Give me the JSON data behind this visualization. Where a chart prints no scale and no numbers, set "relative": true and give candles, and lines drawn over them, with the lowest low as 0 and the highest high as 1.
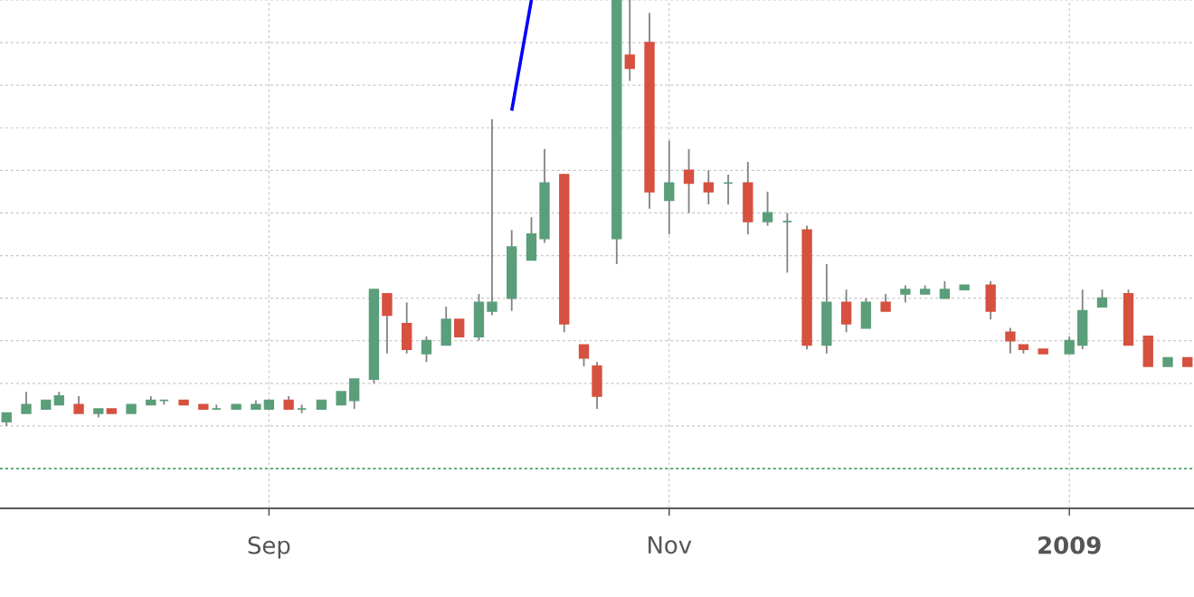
{
  "chart_data": {
    "type": "candlestick",
    "relative": true,
    "grid": true,
    "x": [
      "2008-07-23",
      "2008-07-26",
      "2008-07-29",
      "2008-07-31",
      "2008-08-03",
      "2008-08-06",
      "2008-08-08",
      "2008-08-11",
      "2008-08-14",
      "2008-08-16",
      "2008-08-19",
      "2008-08-22",
      "2008-08-24",
      "2008-08-27",
      "2008-08-30",
      "2008-09-01",
      "2008-09-04",
      "2008-09-06",
      "2008-09-09",
      "2008-09-12",
      "2008-09-14",
      "2008-09-17",
      "2008-09-19",
      "2008-09-22",
      "2008-09-25",
      "2008-09-28",
      "2008-09-30",
      "2008-10-03",
      "2008-10-05",
      "2008-10-08",
      "2008-10-11",
      "2008-10-13",
      "2008-10-16",
      "2008-10-19",
      "2008-10-21",
      "2008-10-24",
      "2008-10-26",
      "2008-10-29",
      "2008-11-01",
      "2008-11-04",
      "2008-11-07",
      "2008-11-10",
      "2008-11-13",
      "2008-11-16",
      "2008-11-19",
      "2008-11-22",
      "2008-11-25",
      "2008-11-28",
      "2008-12-01",
      "2008-12-04",
      "2008-12-07",
      "2008-12-10",
      "2008-12-13",
      "2008-12-16",
      "2008-12-20",
      "2008-12-23",
      "2008-12-25",
      "2008-12-28",
      "2009-01-01",
      "2009-01-03",
      "2009-01-06",
      "2009-01-10",
      "2009-01-13",
      "2009-01-16",
      "2009-01-19"
    ],
    "ohlc": [
      [
        0.01,
        0.03,
        0,
        0.03
      ],
      [
        0.03,
        0.08,
        0.03,
        0.05
      ],
      [
        0.04,
        0.06,
        0.04,
        0.06
      ],
      [
        0.05,
        0.08,
        0.05,
        0.07
      ],
      [
        0.05,
        0.07,
        0.03,
        0.03
      ],
      [
        0.03,
        0.04,
        0.02,
        0.04
      ],
      [
        0.04,
        0.04,
        0.03,
        0.03
      ],
      [
        0.03,
        0.05,
        0.03,
        0.05
      ],
      [
        0.05,
        0.07,
        0.05,
        0.06
      ],
      [
        0.06,
        0.06,
        0.05,
        0.06
      ],
      [
        0.06,
        0.06,
        0.05,
        0.05
      ],
      [
        0.05,
        0.05,
        0.04,
        0.04
      ],
      [
        0.04,
        0.05,
        0.04,
        0.04
      ],
      [
        0.04,
        0.05,
        0.04,
        0.05
      ],
      [
        0.04,
        0.06,
        0.04,
        0.05
      ],
      [
        0.04,
        0.06,
        0.04,
        0.06
      ],
      [
        0.06,
        0.07,
        0.04,
        0.04
      ],
      [
        0.04,
        0.05,
        0.03,
        0.04
      ],
      [
        0.04,
        0.06,
        0.04,
        0.06
      ],
      [
        0.05,
        0.08,
        0.05,
        0.08
      ],
      [
        0.06,
        0.11,
        0.04,
        0.11
      ],
      [
        0.11,
        0.32,
        0.1,
        0.32
      ],
      [
        0.31,
        0.31,
        0.17,
        0.26
      ],
      [
        0.24,
        0.29,
        0.17,
        0.18
      ],
      [
        0.17,
        0.21,
        0.15,
        0.2
      ],
      [
        0.19,
        0.28,
        0.19,
        0.25
      ],
      [
        0.25,
        0.25,
        0.21,
        0.21
      ],
      [
        0.21,
        0.31,
        0.2,
        0.29
      ],
      [
        0.27,
        0.72,
        0.26,
        0.29
      ],
      [
        0.3,
        0.46,
        0.27,
        0.42
      ],
      [
        0.39,
        0.49,
        0.39,
        0.45
      ],
      [
        0.44,
        0.65,
        0.43,
        0.57
      ],
      [
        0.59,
        0.59,
        0.22,
        0.24
      ],
      [
        0.19,
        0.19,
        0.14,
        0.16
      ],
      [
        0.14,
        0.15,
        0.04,
        0.07
      ],
      [
        0.44,
        1,
        0.38,
        1
      ],
      [
        0.87,
        1,
        0.81,
        0.84
      ],
      [
        0.9,
        0.97,
        0.51,
        0.55
      ],
      [
        0.53,
        0.67,
        0.45,
        0.57
      ],
      [
        0.6,
        0.65,
        0.5,
        0.57
      ],
      [
        0.57,
        0.6,
        0.52,
        0.55
      ],
      [
        0.57,
        0.59,
        0.52,
        0.57
      ],
      [
        0.57,
        0.62,
        0.45,
        0.48
      ],
      [
        0.48,
        0.55,
        0.47,
        0.5
      ],
      [
        0.48,
        0.5,
        0.36,
        0.48
      ],
      [
        0.46,
        0.47,
        0.18,
        0.19
      ],
      [
        0.19,
        0.38,
        0.17,
        0.29
      ],
      [
        0.29,
        0.32,
        0.22,
        0.24
      ],
      [
        0.23,
        0.3,
        0.23,
        0.29
      ],
      [
        0.29,
        0.31,
        0.27,
        0.27
      ],
      [
        0.31,
        0.33,
        0.29,
        0.32
      ],
      [
        0.31,
        0.33,
        0.31,
        0.32
      ],
      [
        0.3,
        0.34,
        0.3,
        0.32
      ],
      [
        0.32,
        0.33,
        0.32,
        0.33
      ],
      [
        0.33,
        0.34,
        0.25,
        0.27
      ],
      [
        0.22,
        0.23,
        0.17,
        0.2
      ],
      [
        0.19,
        0.19,
        0.17,
        0.18
      ],
      [
        0.18,
        0.18,
        0.17,
        0.17
      ],
      [
        0.17,
        0.21,
        0.17,
        0.2
      ],
      [
        0.19,
        0.32,
        0.18,
        0.27
      ],
      [
        0.28,
        0.32,
        0.28,
        0.3
      ],
      [
        0.31,
        0.32,
        0.19,
        0.19
      ],
      [
        0.21,
        0.21,
        0.14,
        0.14
      ],
      [
        0.14,
        0.16,
        0.14,
        0.16
      ],
      [
        0.16,
        0.16,
        0.14,
        0.14
      ]
    ],
    "colors": [
      "#5b9e7a",
      "#5b9e7a",
      "#5b9e7a",
      "#5b9e7a",
      "#d65140",
      "#5b9e7a",
      "#d65140",
      "#5b9e7a",
      "#5b9e7a",
      "#5b9e7a",
      "#d65140",
      "#d65140",
      "#5b9e7a",
      "#5b9e7a",
      "#5b9e7a",
      "#5b9e7a",
      "#d65140",
      "#5b9e7a",
      "#5b9e7a",
      "#5b9e7a",
      "#5b9e7a",
      "#5b9e7a",
      "#d65140",
      "#d65140",
      "#5b9e7a",
      "#5b9e7a",
      "#d65140",
      "#5b9e7a",
      "#5b9e7a",
      "#5b9e7a",
      "#5b9e7a",
      "#5b9e7a",
      "#d65140",
      "#d65140",
      "#d65140",
      "#5b9e7a",
      "#d65140",
      "#d65140",
      "#5b9e7a",
      "#d65140",
      "#d65140",
      "#5b9e7a",
      "#d65140",
      "#5b9e7a",
      "#5b9e7a",
      "#d65140",
      "#5b9e7a",
      "#d65140",
      "#5b9e7a",
      "#d65140",
      "#5b9e7a",
      "#5b9e7a",
      "#5b9e7a",
      "#5b9e7a",
      "#d65140",
      "#d65140",
      "#d65140",
      "#d65140",
      "#5b9e7a",
      "#5b9e7a",
      "#5b9e7a",
      "#d65140",
      "#d65140",
      "#5b9e7a",
      "#d65140"
    ],
    "series": [
      {
        "type": "line",
        "color": "#0000ff",
        "x": [
          "2008-10-08",
          "2008-10-11"
        ],
        "values": [
          0.74,
          1
        ]
      }
    ],
    "ref_lines": [
      {
        "axis": "y",
        "value": -0.1,
        "color": "#3a9a5a",
        "line_style": "dotted"
      }
    ],
    "xlim": [
      "2008-07-22",
      "2009-01-20"
    ],
    "xticks": [
      {
        "value": "2008-09-01",
        "label": "Sep"
      },
      {
        "value": "2008-11-01",
        "label": "Nov"
      },
      {
        "value": "2009-01-01",
        "label": "**2009**"
      }
    ]
  }
}
